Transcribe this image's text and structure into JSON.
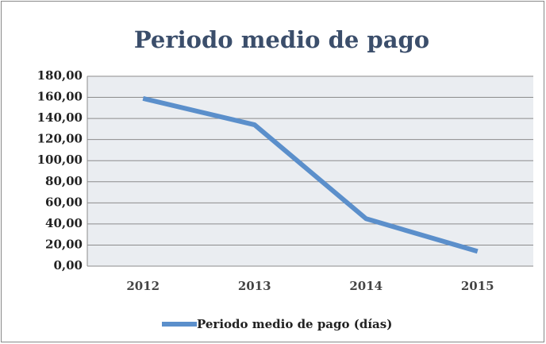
{
  "chart_data": {
    "type": "line",
    "title": "Periodo medio de pago",
    "categories": [
      "2012",
      "2013",
      "2014",
      "2015"
    ],
    "series": [
      {
        "name": "Periodo medio de pago (días)",
        "color": "#5b8fcb",
        "values": [
          159,
          134,
          45,
          14
        ]
      }
    ],
    "ylim": [
      0,
      180
    ],
    "yticks": [
      {
        "value": 0,
        "label": "0,00"
      },
      {
        "value": 20,
        "label": "20,00"
      },
      {
        "value": 40,
        "label": "40,00"
      },
      {
        "value": 60,
        "label": "60,00"
      },
      {
        "value": 80,
        "label": "80,00"
      },
      {
        "value": 100,
        "label": "100,00"
      },
      {
        "value": 120,
        "label": "120,00"
      },
      {
        "value": 140,
        "label": "140,00"
      },
      {
        "value": 160,
        "label": "160,00"
      },
      {
        "value": 180,
        "label": "180,00"
      }
    ],
    "grid": true,
    "legend": "bottom"
  }
}
